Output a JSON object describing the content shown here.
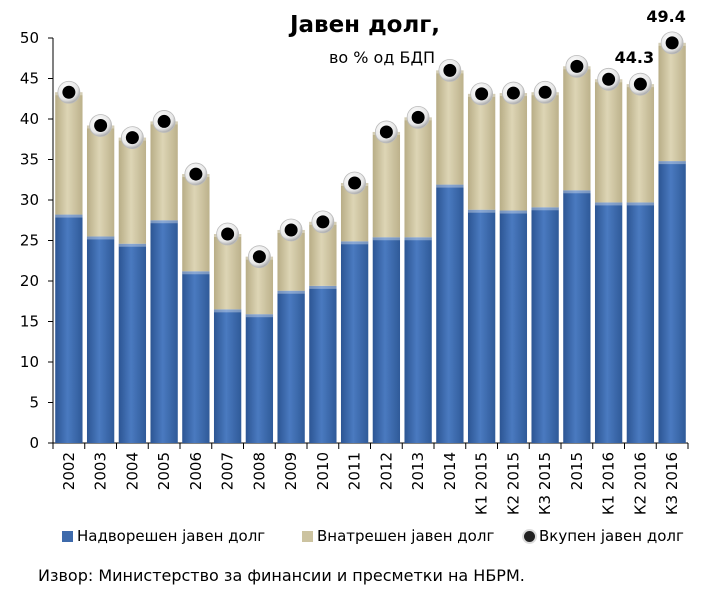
{
  "chart_data": {
    "type": "bar",
    "stacked": true,
    "title": "Јавен долг,",
    "subtitle": "во % од БДП",
    "categories": [
      "2002",
      "2003",
      "2004",
      "2005",
      "2006",
      "2007",
      "2008",
      "2009",
      "2010",
      "2011",
      "2012",
      "2013",
      "2014",
      "К1 2015",
      "К2 2015",
      "К3 2015",
      "2015",
      "К1 2016",
      "К2 2016",
      "К3 2016"
    ],
    "series": [
      {
        "name": "Надворешен јавен долг",
        "color": "#3e6aab",
        "values": [
          28.2,
          25.5,
          24.6,
          27.5,
          21.2,
          16.5,
          15.9,
          18.8,
          19.4,
          24.9,
          25.4,
          25.4,
          31.9,
          28.8,
          28.7,
          29.1,
          31.2,
          29.7,
          29.7,
          34.8
        ]
      },
      {
        "name": "Внатрешен јавен долг",
        "color": "#ccc3a0",
        "values": [
          15.1,
          13.7,
          13.1,
          12.2,
          12.0,
          9.3,
          7.1,
          7.5,
          7.9,
          7.2,
          13.0,
          14.8,
          14.1,
          14.3,
          14.5,
          14.2,
          15.3,
          15.2,
          14.6,
          14.6
        ]
      }
    ],
    "line_series": {
      "name": "Вкупен јавен долг",
      "type": "marker",
      "values": [
        43.3,
        39.2,
        37.7,
        39.7,
        33.2,
        25.8,
        23.0,
        26.3,
        27.3,
        32.1,
        38.4,
        40.2,
        46.0,
        43.1,
        43.2,
        43.3,
        46.5,
        44.9,
        44.3,
        49.4
      ]
    },
    "data_labels": [
      {
        "index": 18,
        "text": "44.3"
      },
      {
        "index": 19,
        "text": "49.4"
      }
    ],
    "ylim": [
      0,
      50
    ],
    "yticks": [
      0,
      5,
      10,
      15,
      20,
      25,
      30,
      35,
      40,
      45,
      50
    ],
    "xlabel": "",
    "ylabel": "",
    "grid": false,
    "legend": "bottom"
  },
  "source": "Извор: Министерство за финансии и пресметки на НБРМ."
}
